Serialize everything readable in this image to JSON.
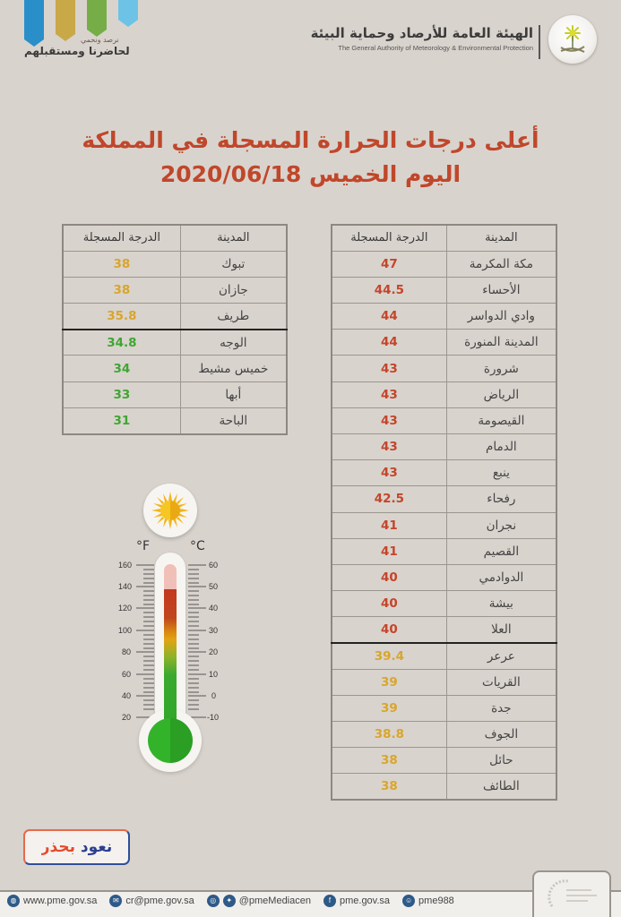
{
  "header": {
    "slogan_small": "نرصد ونحمي",
    "slogan_big": "لحاضرنا ومستقبلهم",
    "authority_ar": "الهيئة العامة للأرصاد وحماية البيئة",
    "authority_en": "The General Authority of Meteorology & Environmental Protection",
    "emblem_icon": "palm-swords-emblem-icon",
    "banner_colors": [
      "#2a8fc9",
      "#c9a848",
      "#76ad47",
      "#6cc3e6"
    ]
  },
  "title": {
    "line1": "أعلى درجات الحرارة المسجلة في المملكة",
    "line2": "اليوم الخميس 2020/06/18",
    "color": "#c0472b"
  },
  "colors": {
    "red": "#c4452a",
    "yellow": "#d9a52c",
    "green": "#3ea633"
  },
  "right_table": {
    "headers": {
      "city": "المدينة",
      "temp": "الدرجة المسجلة"
    },
    "rows": [
      {
        "city": "مكة المكرمة",
        "temp": "47",
        "level": "red"
      },
      {
        "city": "الأحساء",
        "temp": "44.5",
        "level": "red"
      },
      {
        "city": "وادي الدواسر",
        "temp": "44",
        "level": "red"
      },
      {
        "city": "المدينة المنورة",
        "temp": "44",
        "level": "red"
      },
      {
        "city": "شرورة",
        "temp": "43",
        "level": "red"
      },
      {
        "city": "الرياض",
        "temp": "43",
        "level": "red"
      },
      {
        "city": "القيصومة",
        "temp": "43",
        "level": "red"
      },
      {
        "city": "الدمام",
        "temp": "43",
        "level": "red"
      },
      {
        "city": "ينبع",
        "temp": "43",
        "level": "red"
      },
      {
        "city": "رفحاء",
        "temp": "42.5",
        "level": "red"
      },
      {
        "city": "نجران",
        "temp": "41",
        "level": "red"
      },
      {
        "city": "القصيم",
        "temp": "41",
        "level": "red"
      },
      {
        "city": "الدوادمي",
        "temp": "40",
        "level": "red"
      },
      {
        "city": "بيشة",
        "temp": "40",
        "level": "red"
      },
      {
        "city": "العلا",
        "temp": "40",
        "level": "red"
      },
      {
        "city": "عرعر",
        "temp": "39.4",
        "level": "yellow"
      },
      {
        "city": "القريات",
        "temp": "39",
        "level": "yellow"
      },
      {
        "city": "جدة",
        "temp": "39",
        "level": "yellow"
      },
      {
        "city": "الجوف",
        "temp": "38.8",
        "level": "yellow"
      },
      {
        "city": "حائل",
        "temp": "38",
        "level": "yellow"
      },
      {
        "city": "الطائف",
        "temp": "38",
        "level": "yellow"
      }
    ]
  },
  "left_table": {
    "headers": {
      "city": "المدينة",
      "temp": "الدرجة المسجلة"
    },
    "rows": [
      {
        "city": "تبوك",
        "temp": "38",
        "level": "yellow"
      },
      {
        "city": "جازان",
        "temp": "38",
        "level": "yellow"
      },
      {
        "city": "طريف",
        "temp": "35.8",
        "level": "yellow"
      },
      {
        "city": "الوجه",
        "temp": "34.8",
        "level": "green"
      },
      {
        "city": "خميس مشيط",
        "temp": "34",
        "level": "green"
      },
      {
        "city": "أبها",
        "temp": "33",
        "level": "green"
      },
      {
        "city": "الباحة",
        "temp": "31",
        "level": "green"
      }
    ]
  },
  "thermometer": {
    "unit_f": "°F",
    "unit_c": "°C",
    "f_labels": [
      "160",
      "140",
      "120",
      "100",
      "80",
      "60",
      "40",
      "20"
    ],
    "c_labels": [
      "60",
      "50",
      "40",
      "30",
      "20",
      "10",
      "0",
      "-10"
    ],
    "sun_icon": "sun-icon"
  },
  "campaign": {
    "label": "نعود بحذر"
  },
  "footer": {
    "website": "www.pme.gov.sa",
    "email": "cr@pme.gov.sa",
    "social_handle": "@pmeMediacen",
    "facebook": "pme.gov.sa",
    "snapchat": "pme988"
  }
}
